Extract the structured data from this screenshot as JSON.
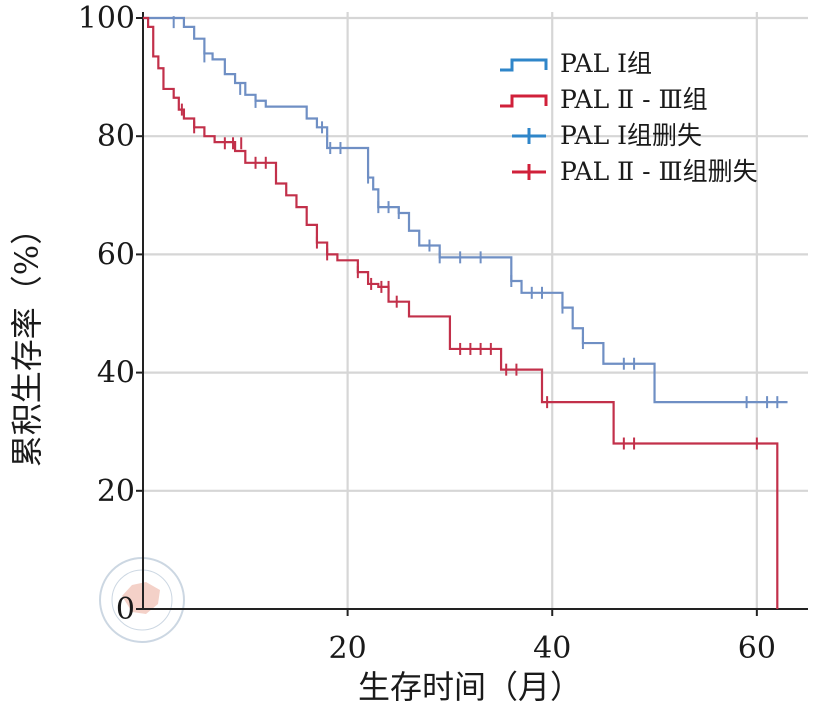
{
  "chart_data": {
    "type": "line",
    "subtype": "kaplan-meier-step",
    "xlabel": "生存时间（月）",
    "ylabel": "累积生存率（%）",
    "xlim": [
      0,
      65
    ],
    "ylim": [
      0,
      100
    ],
    "xticks": [
      20,
      40,
      60
    ],
    "yticks": [
      0,
      20,
      40,
      60,
      80,
      100
    ],
    "grid": true,
    "legend_position": "top-right",
    "legend": [
      {
        "label": "PAL Ⅰ组",
        "kind": "line",
        "color": "#2f86c9"
      },
      {
        "label": "PAL Ⅱ - Ⅲ组",
        "kind": "line",
        "color": "#d0203a"
      },
      {
        "label": "PAL Ⅰ组删失",
        "kind": "censor",
        "color": "#2f86c9"
      },
      {
        "label": "PAL Ⅱ - Ⅲ组删失",
        "kind": "censor",
        "color": "#d0203a"
      }
    ],
    "series": [
      {
        "color": "#6f8fc4",
        "steps": [
          [
            0,
            100
          ],
          [
            4,
            98.5
          ],
          [
            5,
            96.5
          ],
          [
            6,
            94
          ],
          [
            6.8,
            93
          ],
          [
            8,
            90.5
          ],
          [
            9,
            89
          ],
          [
            10,
            87
          ],
          [
            11,
            86
          ],
          [
            12,
            85
          ],
          [
            16,
            83
          ],
          [
            17,
            81.5
          ],
          [
            18,
            78
          ],
          [
            22,
            73
          ],
          [
            22.5,
            71
          ],
          [
            23,
            68
          ],
          [
            25,
            67
          ],
          [
            26,
            64
          ],
          [
            27,
            61.5
          ],
          [
            29,
            59.5
          ],
          [
            36,
            55.5
          ],
          [
            37,
            53.5
          ],
          [
            41,
            51
          ],
          [
            42,
            47.5
          ],
          [
            43,
            45
          ],
          [
            45,
            41.5
          ],
          [
            50,
            35
          ],
          [
            63,
            35
          ]
        ],
        "censored": [
          [
            3,
            99.3
          ],
          [
            6,
            93.5
          ],
          [
            9.5,
            88
          ],
          [
            11,
            85.8
          ],
          [
            17.5,
            81.5
          ],
          [
            18.3,
            78
          ],
          [
            19.3,
            78
          ],
          [
            22,
            73
          ],
          [
            23,
            68
          ],
          [
            24,
            68
          ],
          [
            25,
            67
          ],
          [
            28,
            61.5
          ],
          [
            29,
            59.5
          ],
          [
            31,
            59.5
          ],
          [
            33,
            59.5
          ],
          [
            36,
            55.5
          ],
          [
            38,
            53.5
          ],
          [
            39,
            53.5
          ],
          [
            41,
            51
          ],
          [
            43,
            45
          ],
          [
            47,
            41.5
          ],
          [
            48,
            41.5
          ],
          [
            59,
            35
          ],
          [
            61,
            35
          ],
          [
            62,
            35
          ]
        ]
      },
      {
        "color": "#c2304a",
        "steps": [
          [
            0,
            100
          ],
          [
            0.5,
            98.5
          ],
          [
            1,
            93.5
          ],
          [
            1.5,
            91.5
          ],
          [
            2,
            88
          ],
          [
            3,
            86.5
          ],
          [
            3.5,
            84.5
          ],
          [
            4,
            83
          ],
          [
            5,
            81.5
          ],
          [
            6,
            80
          ],
          [
            7,
            79
          ],
          [
            9,
            77.5
          ],
          [
            10,
            75.5
          ],
          [
            13,
            72
          ],
          [
            14,
            70
          ],
          [
            15,
            68
          ],
          [
            16,
            65
          ],
          [
            17,
            62
          ],
          [
            18,
            60
          ],
          [
            19,
            59
          ],
          [
            21,
            57
          ],
          [
            22,
            55
          ],
          [
            23,
            54.5
          ],
          [
            24,
            52
          ],
          [
            26,
            49.5
          ],
          [
            30,
            44
          ],
          [
            35,
            40.5
          ],
          [
            39,
            35
          ],
          [
            46,
            28
          ],
          [
            62,
            28
          ],
          [
            62,
            0
          ]
        ],
        "censored": [
          [
            3.8,
            84.5
          ],
          [
            5,
            81.5
          ],
          [
            8,
            78.8
          ],
          [
            8.8,
            78.8
          ],
          [
            9.6,
            78.8
          ],
          [
            11,
            75.5
          ],
          [
            12,
            75.5
          ],
          [
            17,
            62
          ],
          [
            18,
            60
          ],
          [
            21,
            57
          ],
          [
            22.3,
            55
          ],
          [
            23.3,
            54.5
          ],
          [
            24,
            54.5
          ],
          [
            24.8,
            52
          ],
          [
            31,
            44
          ],
          [
            32,
            44
          ],
          [
            33,
            44
          ],
          [
            34,
            44
          ],
          [
            35.5,
            40.5
          ],
          [
            36.5,
            40.5
          ],
          [
            39.5,
            35
          ],
          [
            47,
            28
          ],
          [
            48,
            28
          ],
          [
            60,
            28
          ]
        ]
      }
    ]
  }
}
